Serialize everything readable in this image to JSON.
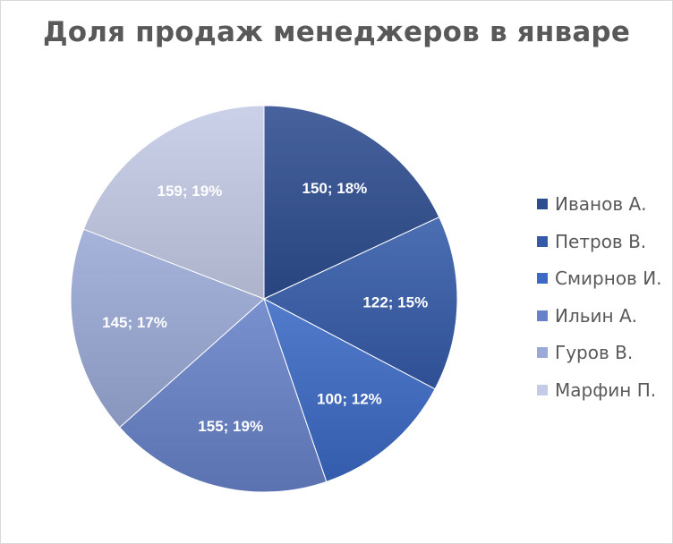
{
  "chart_data": {
    "type": "pie",
    "title": "Доля продаж менеджеров в январе",
    "categories": [
      "Иванов А.",
      "Петров В.",
      "Смирнов И.",
      "Ильин А.",
      "Гуров В.",
      "Марфин П."
    ],
    "values": [
      150,
      122,
      100,
      155,
      145,
      159
    ],
    "percent_labels": [
      "18%",
      "15%",
      "12%",
      "19%",
      "17%",
      "19%"
    ],
    "colors": [
      "#2e4d8f",
      "#345aa8",
      "#3b69c4",
      "#6782c9",
      "#9aa9d6",
      "#c4cbe6"
    ],
    "legend_position": "right",
    "data_labels": "value; percent"
  }
}
